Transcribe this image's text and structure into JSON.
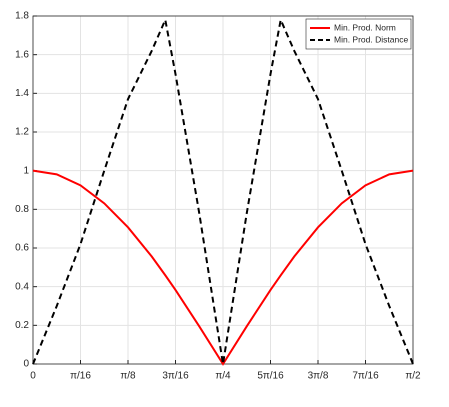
{
  "chart_data": {
    "type": "line",
    "x": [
      0,
      0.0982,
      0.1963,
      0.2945,
      0.3927,
      0.4909,
      0.5468,
      0.589,
      0.6872,
      0.7854,
      0.8836,
      0.9818,
      1.024,
      1.0799,
      1.1781,
      1.2763,
      1.3744,
      1.4726,
      1.5708
    ],
    "series": [
      {
        "name": "Min. Prod. Norm",
        "color": "#ff0000",
        "dash": false,
        "values": [
          1,
          0.981,
          0.924,
          0.831,
          0.707,
          0.556,
          0.459,
          0.383,
          0.195,
          0,
          0.195,
          0.383,
          0.459,
          0.556,
          0.707,
          0.831,
          0.924,
          0.981,
          1
        ]
      },
      {
        "name": "Min. Prod. Distance",
        "color": "#000000",
        "dash": true,
        "values": [
          0,
          0.3,
          0.62,
          1.0,
          1.37,
          1.62,
          1.78,
          1.5,
          0.78,
          0,
          0.78,
          1.5,
          1.78,
          1.62,
          1.37,
          1.0,
          0.62,
          0.3,
          0
        ]
      }
    ],
    "xlim": [
      0,
      1.5708
    ],
    "xticks": [
      0,
      {
        "value": 0.19635,
        "label": "π/16"
      },
      {
        "value": 0.3927,
        "label": "π/8"
      },
      {
        "value": 0.58905,
        "label": "3π/16"
      },
      {
        "value": 0.7854,
        "label": "π/4"
      },
      {
        "value": 0.98175,
        "label": "5π/16"
      },
      {
        "value": 1.1781,
        "label": "3π/8"
      },
      {
        "value": 1.37445,
        "label": "7π/16"
      },
      {
        "value": 1.5708,
        "label": "π/2"
      }
    ],
    "ylim": [
      0,
      1.8
    ],
    "yticks": [
      0,
      0.2,
      0.4,
      0.6,
      0.8,
      1,
      1.2,
      1.4,
      1.6,
      1.8
    ],
    "grid": true,
    "legend": "top-right"
  }
}
